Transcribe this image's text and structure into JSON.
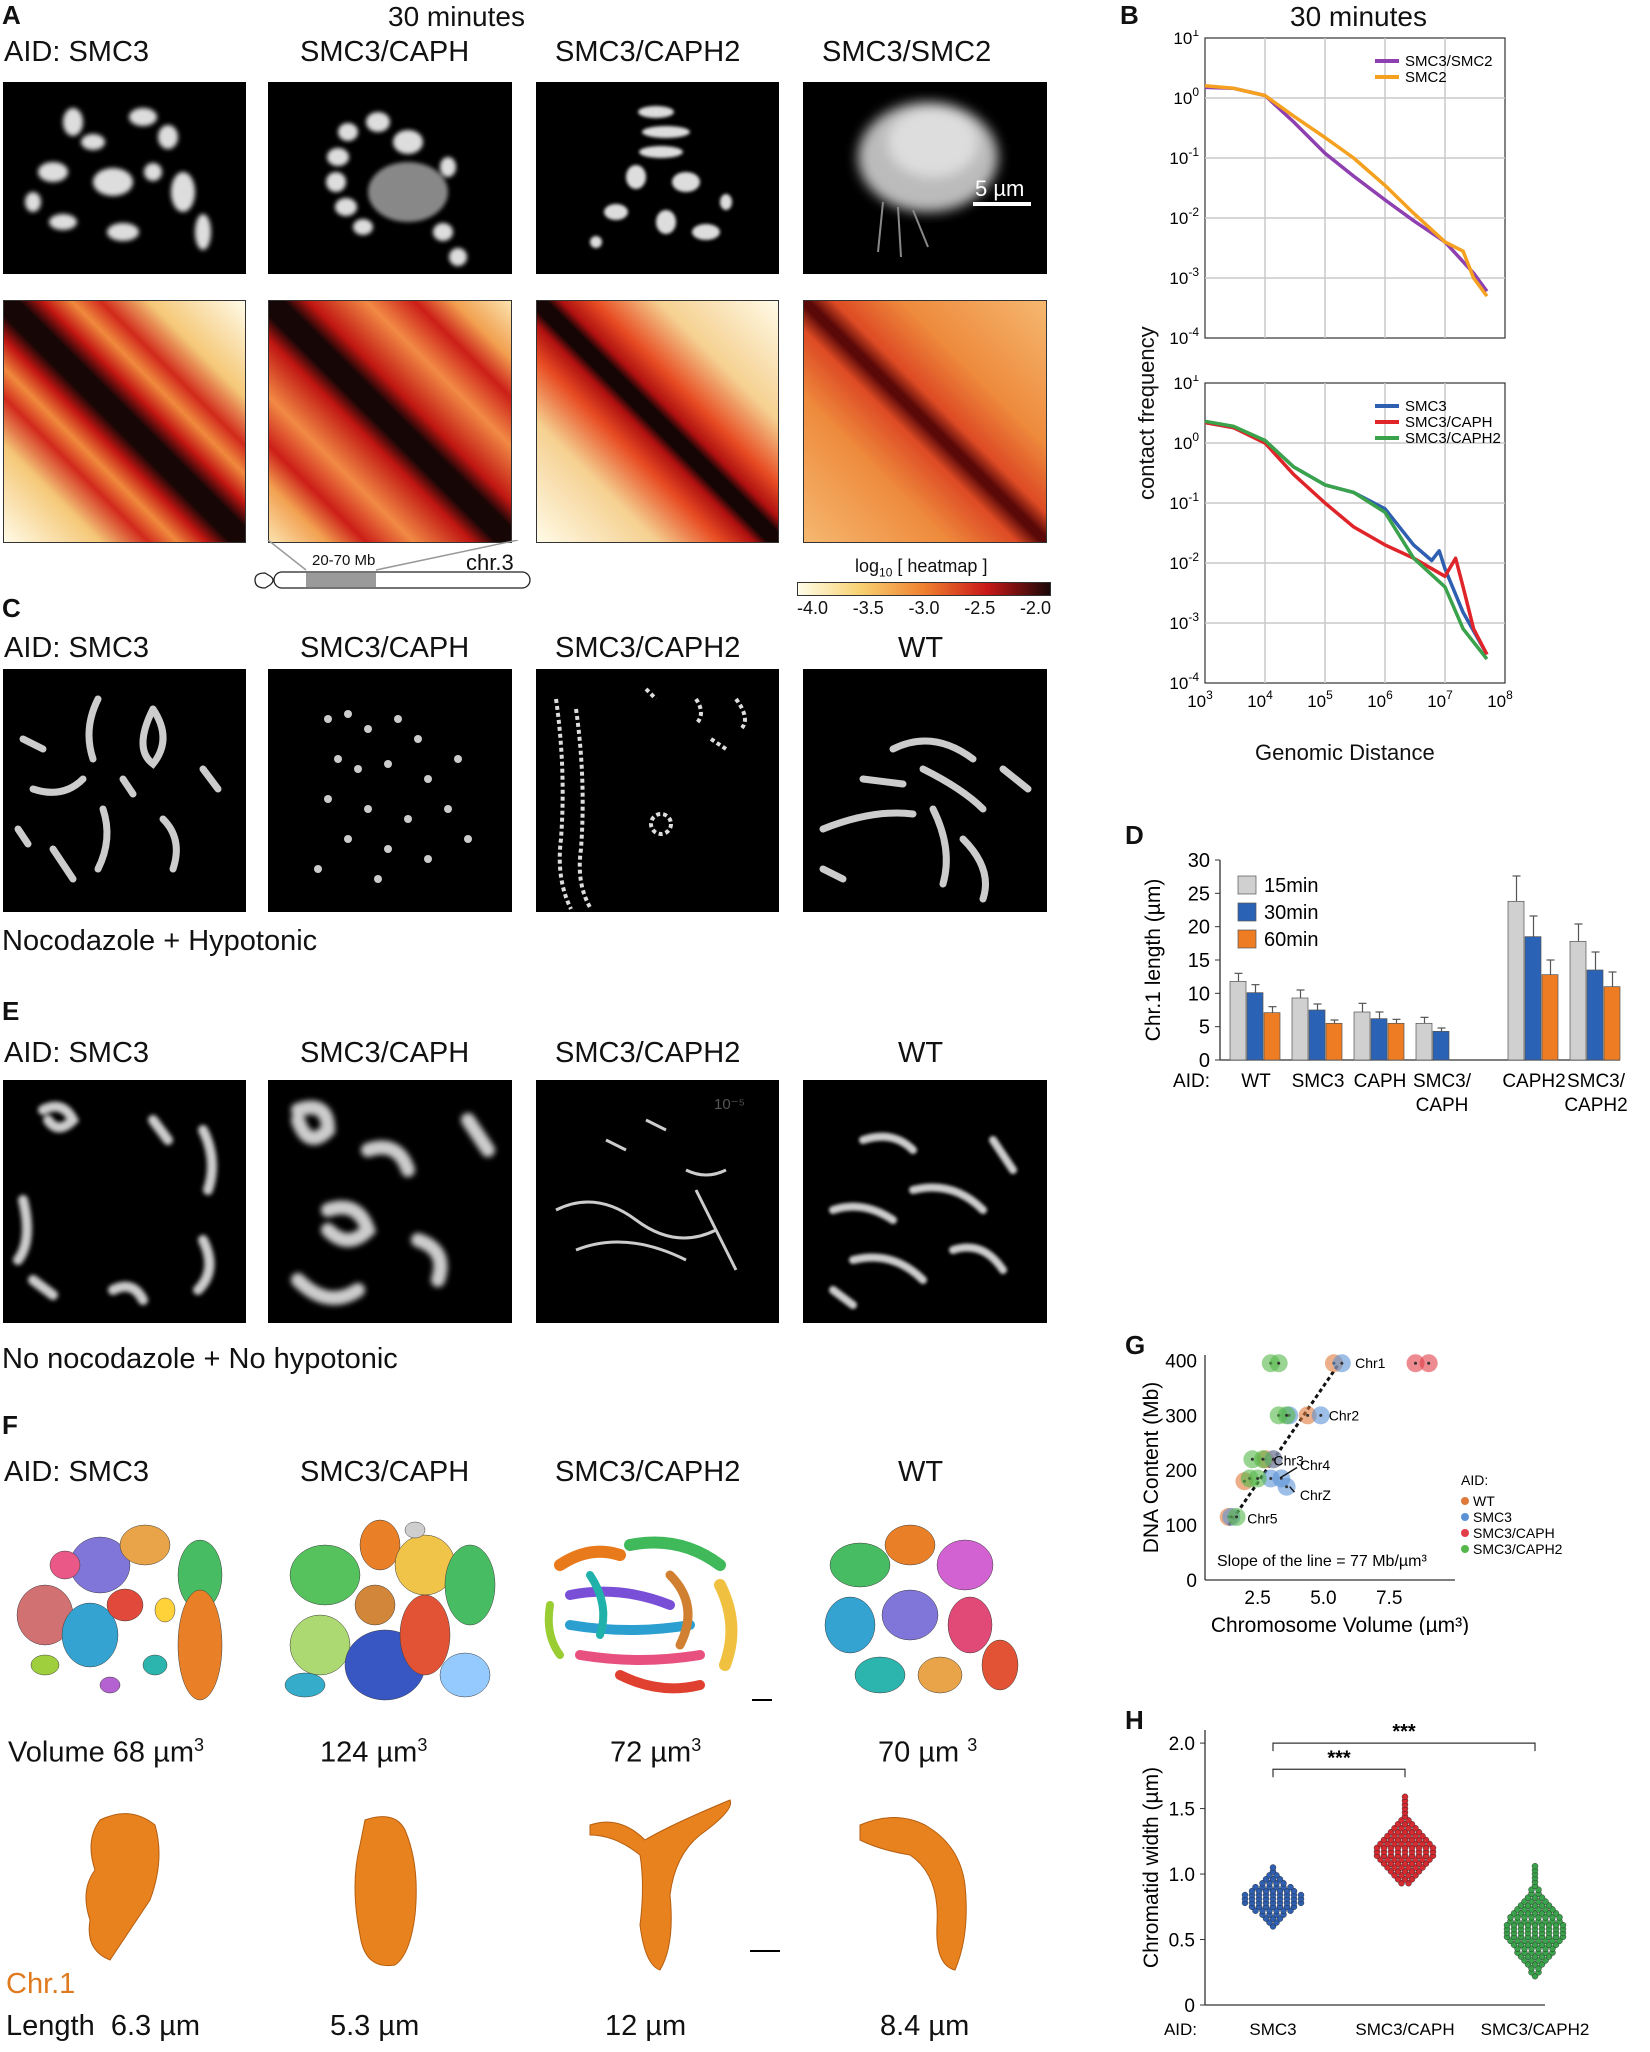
{
  "panels": {
    "A": "A",
    "B": "B",
    "C": "C",
    "D": "D",
    "E": "E",
    "F": "F",
    "G": "G",
    "H": "H"
  },
  "panel_a": {
    "title": "30 minutes",
    "labels": [
      "AID:  SMC3",
      "SMC3/CAPH",
      "SMC3/CAPH2",
      "SMC3/SMC2"
    ],
    "scale_bar": "5 µm",
    "chrom_region": "20-70 Mb",
    "chrom_name": "chr.3",
    "colorbar_title": "log",
    "colorbar_sub": "10",
    "colorbar_title2": " [ heatmap ]",
    "colorbar_ticks": [
      "-4.0",
      "-3.5",
      "-3.0",
      "-2.5",
      "-2.0"
    ]
  },
  "panel_c": {
    "labels": [
      "AID:  SMC3",
      "SMC3/CAPH",
      "SMC3/CAPH2",
      "WT"
    ],
    "caption": "Nocodazole + Hypotonic"
  },
  "panel_e": {
    "labels": [
      "AID:  SMC3",
      "SMC3/CAPH",
      "SMC3/CAPH2",
      "WT"
    ],
    "caption": "No nocodazole + No hypotonic",
    "watermark": "10⁻⁵"
  },
  "panel_f": {
    "labels": [
      "AID:  SMC3",
      "SMC3/CAPH",
      "SMC3/CAPH2",
      "WT"
    ],
    "volume_prefix": "Volume",
    "volumes": [
      "68 µm",
      "124 µm",
      "72 µm",
      "70 µm "
    ],
    "volume_sup": "3",
    "chr_label": "Chr.1",
    "length_prefix": "Length",
    "lengths": [
      "6.3 µm",
      "5.3 µm",
      "12 µm",
      "8.4 µm"
    ]
  },
  "panel_b": {
    "title": "30 minutes",
    "ylabel": "contact frequency",
    "xlabel": "Genomic Distance",
    "y_ticks": [
      "10",
      "10",
      "10",
      "10",
      "10",
      "10"
    ],
    "y_exps": [
      "1",
      "0",
      "-1",
      "-2",
      "-3",
      "-4"
    ],
    "x_ticks": [
      "10",
      "10",
      "10",
      "10",
      "10",
      "10"
    ],
    "x_exps": [
      "3",
      "4",
      "5",
      "6",
      "7",
      "8"
    ]
  },
  "chart_data": [
    {
      "type": "line",
      "title": "30 minutes",
      "xlabel": "",
      "ylabel": "contact frequency",
      "x_scale": "log",
      "y_scale": "log",
      "xlim": [
        1000,
        100000000
      ],
      "ylim": [
        0.0001,
        10
      ],
      "grid": true,
      "legend": "top-right",
      "series": [
        {
          "name": "SMC3/SMC2",
          "color": "#8e3fb0",
          "x": [
            1000,
            3000,
            10000,
            30000,
            100000,
            300000,
            1000000,
            3000000,
            10000000,
            30000000,
            50000000
          ],
          "y": [
            1.5,
            1.45,
            1.1,
            0.4,
            0.12,
            0.05,
            0.02,
            0.009,
            0.004,
            0.0012,
            0.0006
          ]
        },
        {
          "name": "SMC2",
          "color": "#f5a11f",
          "x": [
            1000,
            3000,
            10000,
            30000,
            100000,
            300000,
            1000000,
            3000000,
            10000000,
            20000000,
            30000000,
            50000000
          ],
          "y": [
            1.6,
            1.45,
            1.1,
            0.5,
            0.22,
            0.1,
            0.035,
            0.012,
            0.004,
            0.0028,
            0.001,
            0.0005
          ]
        }
      ]
    },
    {
      "type": "line",
      "xlabel": "Genomic Distance",
      "ylabel": "contact frequency",
      "x_scale": "log",
      "y_scale": "log",
      "xlim": [
        1000,
        100000000
      ],
      "ylim": [
        0.0001,
        10
      ],
      "grid": true,
      "legend": "top-right",
      "series": [
        {
          "name": "SMC3",
          "color": "#2f5fb0",
          "x": [
            1000,
            3000,
            10000,
            30000,
            100000,
            300000,
            1000000,
            3000000,
            6000000,
            8000000,
            10000000,
            20000000,
            50000000
          ],
          "y": [
            2.2,
            1.8,
            1.1,
            0.4,
            0.2,
            0.15,
            0.08,
            0.02,
            0.011,
            0.016,
            0.008,
            0.0015,
            0.0003
          ]
        },
        {
          "name": "SMC3/CAPH",
          "color": "#e0252a",
          "x": [
            1000,
            3000,
            10000,
            30000,
            100000,
            300000,
            1000000,
            3000000,
            10000000,
            15000000,
            20000000,
            30000000,
            50000000
          ],
          "y": [
            2.2,
            1.8,
            1.0,
            0.3,
            0.1,
            0.04,
            0.02,
            0.012,
            0.006,
            0.012,
            0.004,
            0.0008,
            0.0003
          ]
        },
        {
          "name": "SMC3/CAPH2",
          "color": "#3aa24a",
          "x": [
            1000,
            3000,
            10000,
            30000,
            100000,
            300000,
            1000000,
            3000000,
            10000000,
            20000000,
            50000000
          ],
          "y": [
            2.3,
            1.9,
            1.1,
            0.4,
            0.2,
            0.15,
            0.07,
            0.012,
            0.004,
            0.0008,
            0.00025
          ]
        }
      ]
    },
    {
      "type": "bar",
      "ylabel": "Chr.1 length (µm)",
      "ylim": [
        0,
        30
      ],
      "y_ticks": [
        "0",
        "5",
        "10",
        "15",
        "20",
        "25",
        "30"
      ],
      "axis_prefix": "AID:",
      "categories": [
        "WT",
        "SMC3",
        "CAPH",
        "SMC3/\nCAPH",
        "CAPH2",
        "SMC3/\nCAPH2"
      ],
      "category_lines": [
        [
          "WT"
        ],
        [
          "SMC3"
        ],
        [
          "CAPH"
        ],
        [
          "SMC3/",
          "CAPH"
        ],
        [
          "CAPH2"
        ],
        [
          "SMC3/",
          "CAPH2"
        ]
      ],
      "legend": "top-left",
      "series": [
        {
          "name": "15min",
          "color": "#d0d0d0",
          "values": [
            11.8,
            9.3,
            7.2,
            5.5,
            23.8,
            17.8
          ],
          "errors": [
            1.2,
            1.2,
            1.3,
            0.9,
            3.8,
            2.6
          ]
        },
        {
          "name": "30min",
          "color": "#2a62b5",
          "values": [
            10.1,
            7.5,
            6.2,
            4.3,
            18.5,
            13.5
          ],
          "errors": [
            1.2,
            0.9,
            1.0,
            0.5,
            3.1,
            2.7
          ]
        },
        {
          "name": "60min",
          "color": "#ee7c22",
          "values": [
            7.1,
            5.5,
            5.5,
            null,
            12.8,
            11.0
          ],
          "errors": [
            0.9,
            0.5,
            0.6,
            null,
            2.2,
            2.2
          ]
        }
      ]
    },
    {
      "type": "scatter",
      "xlabel": "Chromosome Volume (µm³)",
      "ylabel": "DNA Content (Mb)",
      "xlim": [
        0.5,
        10
      ],
      "ylim": [
        0,
        410
      ],
      "x_ticks": [
        "2.5",
        "5.0",
        "7.5"
      ],
      "y_ticks": [
        "0",
        "100",
        "200",
        "300",
        "400"
      ],
      "legend_title": "AID:",
      "annotation": "Slope of the line = 77 Mb/µm³",
      "chrom_labels": [
        "Chr1",
        "Chr2",
        "Chr3",
        "Chr4",
        "ChrZ",
        "Chr5"
      ],
      "series": [
        {
          "name": "WT",
          "color": "#e07a3b",
          "points": [
            [
              5.4,
              395
            ],
            [
              4.4,
              300
            ],
            [
              2.8,
              220
            ],
            [
              3.1,
              220
            ],
            [
              2.0,
              180
            ],
            [
              1.4,
              115
            ]
          ]
        },
        {
          "name": "SMC3",
          "color": "#5b92d6",
          "points": [
            [
              5.7,
              395
            ],
            [
              4.9,
              300
            ],
            [
              3.7,
              300
            ],
            [
              3.1,
              220
            ],
            [
              3.4,
              185
            ],
            [
              3.0,
              185
            ],
            [
              3.6,
              170
            ],
            [
              1.5,
              115
            ]
          ]
        },
        {
          "name": "SMC3/CAPH",
          "color": "#e13d48",
          "points": [
            [
              8.5,
              395
            ],
            [
              9.0,
              395
            ]
          ]
        },
        {
          "name": "SMC3/CAPH2",
          "color": "#55b74a",
          "points": [
            [
              3.0,
              395
            ],
            [
              3.3,
              395
            ],
            [
              3.3,
              300
            ],
            [
              3.6,
              300
            ],
            [
              2.3,
              220
            ],
            [
              2.7,
              220
            ],
            [
              2.2,
              185
            ],
            [
              2.5,
              185
            ],
            [
              1.7,
              115
            ]
          ]
        }
      ]
    },
    {
      "type": "scatter",
      "ylabel": "Chromatid width (µm)",
      "ylim": [
        0,
        2.1
      ],
      "y_ticks": [
        "0",
        "0.5",
        "1.0",
        "1.5",
        "2.0"
      ],
      "axis_prefix": "AID:",
      "categories": [
        "SMC3",
        "SMC3/CAPH",
        "SMC3/CAPH2"
      ],
      "significance": [
        "***",
        "***"
      ],
      "series": [
        {
          "name": "SMC3",
          "color": "#2f5fb0",
          "center": 0.81,
          "min": 0.6,
          "max": 1.07
        },
        {
          "name": "SMC3/CAPH",
          "color": "#d42a30",
          "center": 1.17,
          "min": 0.93,
          "max": 1.6
        },
        {
          "name": "SMC3/CAPH2",
          "color": "#3aa24a",
          "center": 0.57,
          "min": 0.22,
          "max": 1.07
        }
      ]
    }
  ]
}
